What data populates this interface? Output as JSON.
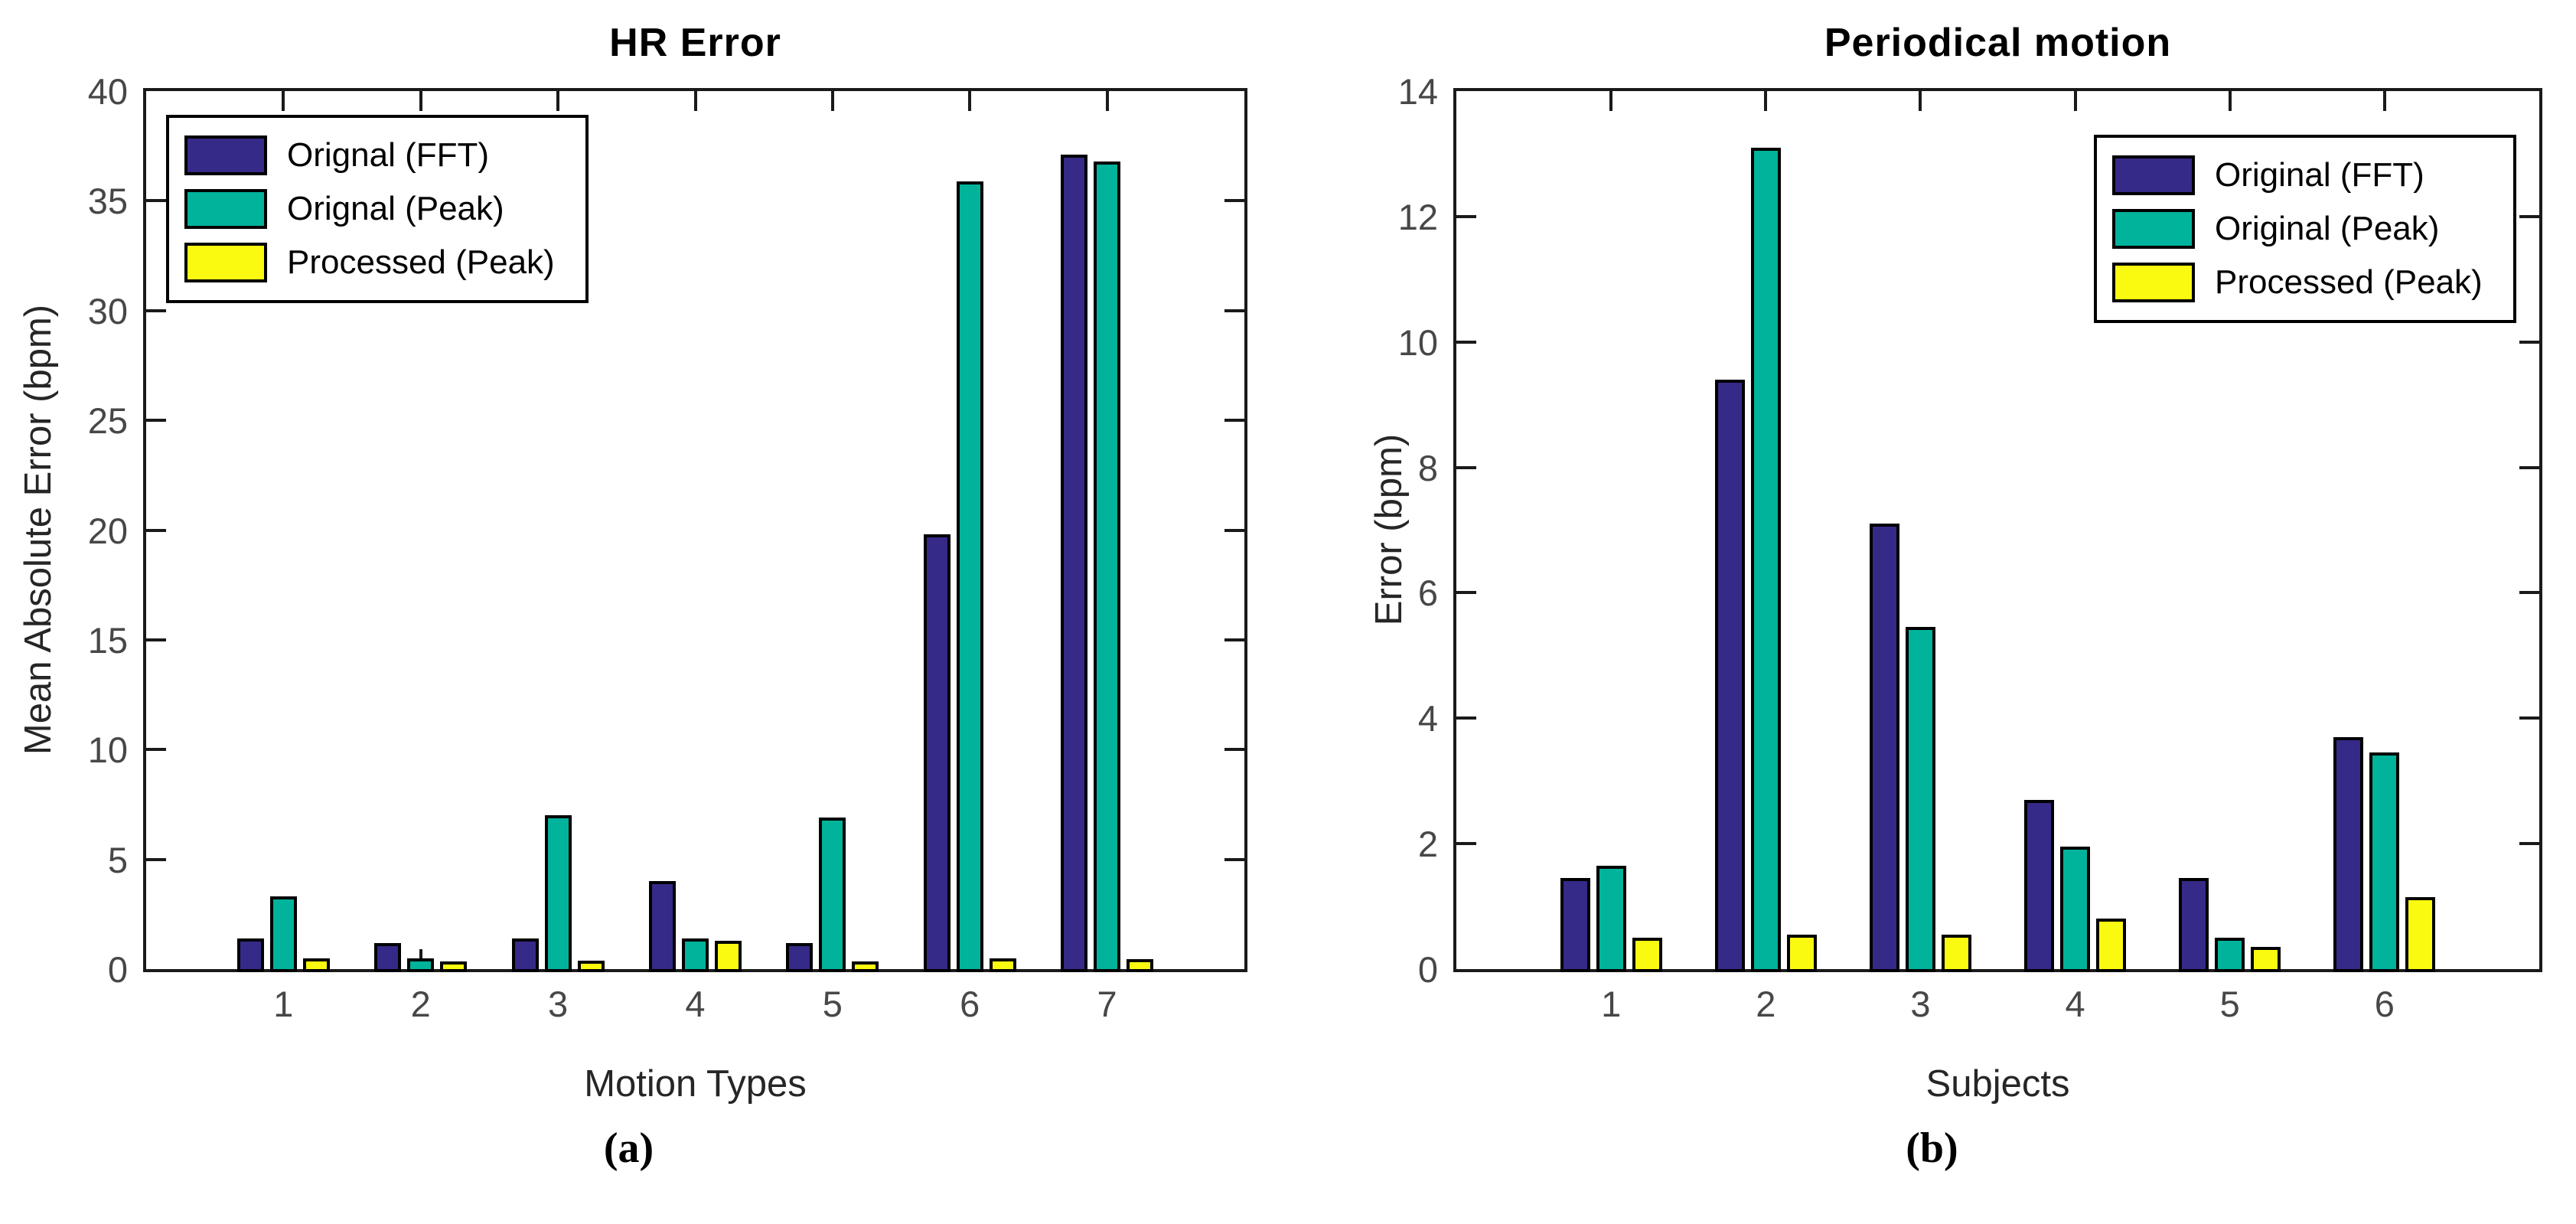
{
  "colors": {
    "fft": "#352A87",
    "peak": "#01B39B",
    "processed": "#FAFA11",
    "axis": "#1a1a1a",
    "tick_label": "#474747",
    "bar_border": "#000000"
  },
  "chart_data": [
    {
      "type": "bar",
      "title": "HR Error",
      "xlabel": "Motion Types",
      "ylabel": "Mean Absolute Error (bpm)",
      "caption": "(a)",
      "categories": [
        "1",
        "2",
        "3",
        "4",
        "5",
        "6",
        "7"
      ],
      "ylim": [
        0,
        40
      ],
      "ytick_step": 5,
      "grid": false,
      "legend_position": "top-left",
      "series": [
        {
          "name": "Orignal (FFT)",
          "color_key": "fft",
          "values": [
            1.4,
            1.2,
            1.4,
            4.0,
            1.2,
            19.8,
            37.1
          ]
        },
        {
          "name": "Orignal (Peak)",
          "color_key": "peak",
          "values": [
            3.3,
            0.5,
            7.0,
            1.4,
            6.9,
            35.9,
            36.8
          ]
        },
        {
          "name": "Processed (Peak)",
          "color_key": "processed",
          "values": [
            0.5,
            0.35,
            0.4,
            1.3,
            0.35,
            0.5,
            0.45
          ]
        }
      ]
    },
    {
      "type": "bar",
      "title": "Periodical motion",
      "xlabel": "Subjects",
      "ylabel": "Error (bpm)",
      "caption": "(b)",
      "categories": [
        "1",
        "2",
        "3",
        "4",
        "5",
        "6"
      ],
      "ylim": [
        0,
        14
      ],
      "ytick_step": 2,
      "grid": false,
      "legend_position": "top-right",
      "series": [
        {
          "name": "Original (FFT)",
          "color_key": "fft",
          "values": [
            1.45,
            9.4,
            7.1,
            2.7,
            1.45,
            3.7
          ]
        },
        {
          "name": "Original (Peak)",
          "color_key": "peak",
          "values": [
            1.65,
            13.1,
            5.45,
            1.95,
            0.5,
            3.45
          ]
        },
        {
          "name": "Processed (Peak)",
          "color_key": "processed",
          "values": [
            0.5,
            0.55,
            0.55,
            0.8,
            0.35,
            1.15
          ]
        }
      ]
    }
  ]
}
